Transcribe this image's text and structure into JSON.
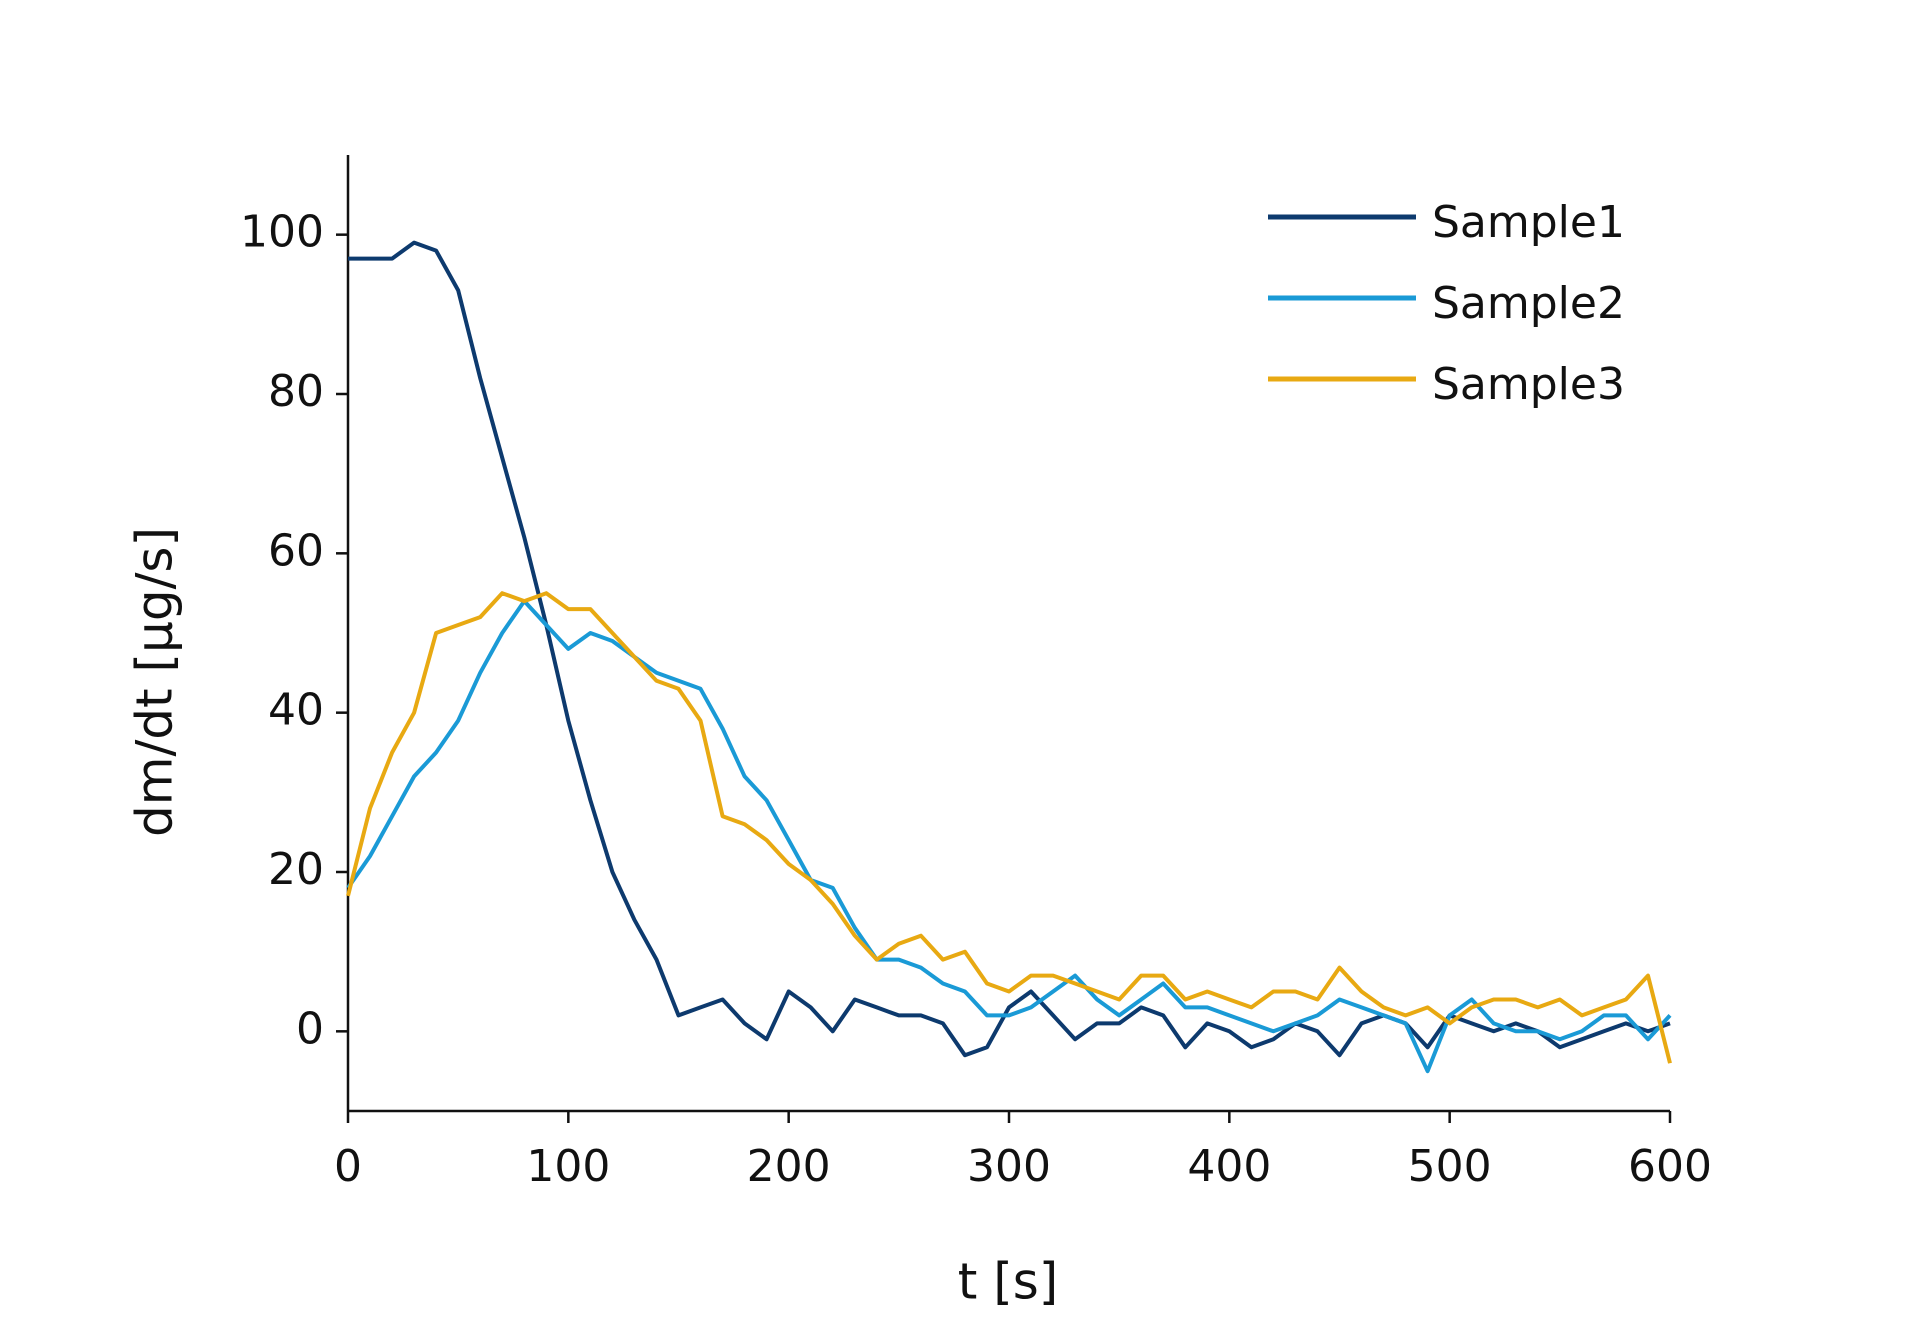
{
  "chart_data": {
    "type": "line",
    "x_label": "t [s]",
    "y_label": "dm/dt [µg/s]",
    "x": [
      0,
      10,
      20,
      30,
      40,
      50,
      60,
      70,
      80,
      90,
      100,
      110,
      120,
      130,
      140,
      150,
      160,
      170,
      180,
      190,
      200,
      210,
      220,
      230,
      240,
      250,
      260,
      270,
      280,
      290,
      300,
      310,
      320,
      330,
      340,
      350,
      360,
      370,
      380,
      390,
      400,
      410,
      420,
      430,
      440,
      450,
      460,
      470,
      480,
      490,
      500,
      510,
      520,
      530,
      540,
      550,
      560,
      570,
      580,
      590,
      600
    ],
    "series": [
      {
        "name": "Sample1",
        "color": "#0d3a6e",
        "values": [
          97,
          97,
          97,
          99,
          98,
          93,
          82,
          72,
          62,
          51,
          39,
          29,
          20,
          14,
          9,
          2,
          3,
          4,
          1,
          -1,
          5,
          3,
          0,
          4,
          3,
          2,
          2,
          1,
          -3,
          -2,
          3,
          5,
          2,
          -1,
          1,
          1,
          3,
          2,
          -2,
          1,
          0,
          -2,
          -1,
          1,
          0,
          -3,
          1,
          2,
          1,
          -2,
          2,
          1,
          0,
          1,
          0,
          -2,
          -1,
          0,
          1,
          0,
          1
        ]
      },
      {
        "name": "Sample2",
        "color": "#1a9ad6",
        "values": [
          18,
          22,
          27,
          32,
          35,
          39,
          45,
          50,
          54,
          51,
          48,
          50,
          49,
          47,
          45,
          44,
          43,
          38,
          32,
          29,
          24,
          19,
          18,
          13,
          9,
          9,
          8,
          6,
          5,
          2,
          2,
          3,
          5,
          7,
          4,
          2,
          4,
          6,
          3,
          3,
          2,
          1,
          0,
          1,
          2,
          4,
          3,
          2,
          1,
          -5,
          2,
          4,
          1,
          0,
          0,
          -1,
          0,
          2,
          2,
          -1,
          2
        ]
      },
      {
        "name": "Sample3",
        "color": "#e8a912",
        "values": [
          17,
          28,
          35,
          40,
          50,
          51,
          52,
          55,
          54,
          55,
          53,
          53,
          50,
          47,
          44,
          43,
          39,
          27,
          26,
          24,
          21,
          19,
          16,
          12,
          9,
          11,
          12,
          9,
          10,
          6,
          5,
          7,
          7,
          6,
          5,
          4,
          7,
          7,
          4,
          5,
          4,
          3,
          5,
          5,
          4,
          8,
          5,
          3,
          2,
          3,
          1,
          3,
          4,
          4,
          3,
          4,
          2,
          3,
          4,
          7,
          -4
        ]
      }
    ],
    "xlim": [
      0,
      600
    ],
    "xticks": [
      0,
      100,
      200,
      300,
      400,
      500,
      600
    ],
    "ylim": [
      -10,
      110
    ],
    "yticks": [
      0,
      20,
      40,
      60,
      80,
      100
    ],
    "legend": "upper right",
    "grid": false
  }
}
